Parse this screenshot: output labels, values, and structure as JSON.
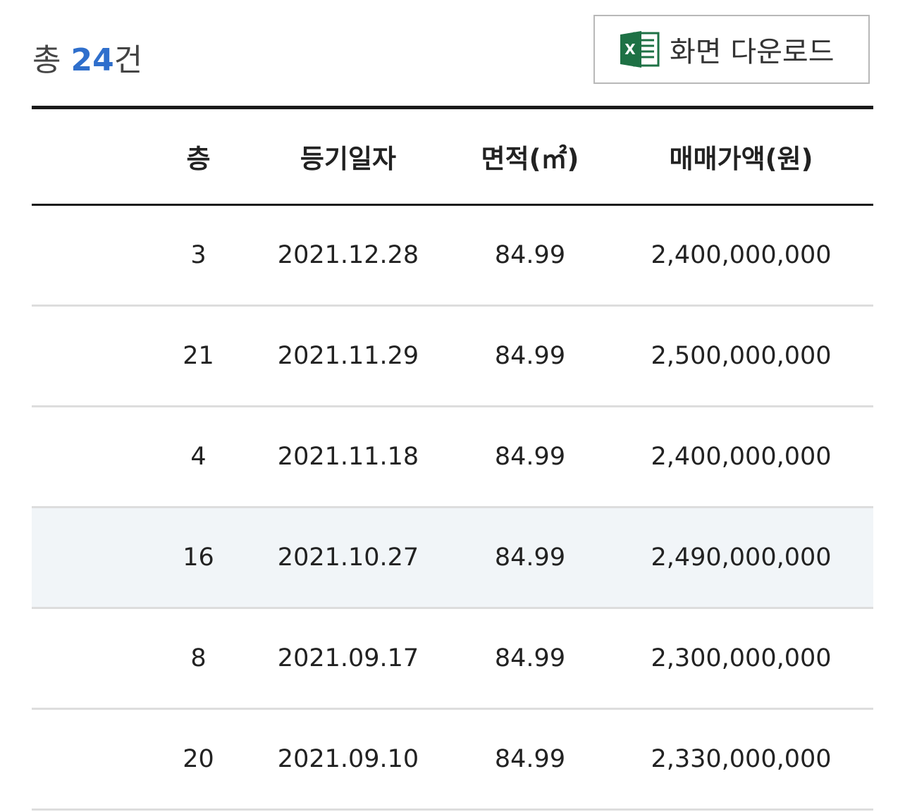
{
  "summary": {
    "prefix": "총 ",
    "count": "24",
    "suffix": "건"
  },
  "download_button": {
    "label": "화면 다운로드",
    "icon": "excel-icon",
    "icon_color": "#1e7145"
  },
  "table": {
    "headers": [
      "층",
      "등기일자",
      "면적(㎡)",
      "매매가액(원)"
    ],
    "rows": [
      {
        "floor": "3",
        "date": "2021.12.28",
        "area": "84.99",
        "price": "2,400,000,000"
      },
      {
        "floor": "21",
        "date": "2021.11.29",
        "area": "84.99",
        "price": "2,500,000,000"
      },
      {
        "floor": "4",
        "date": "2021.11.18",
        "area": "84.99",
        "price": "2,400,000,000"
      },
      {
        "floor": "16",
        "date": "2021.10.27",
        "area": "84.99",
        "price": "2,490,000,000"
      },
      {
        "floor": "8",
        "date": "2021.09.17",
        "area": "84.99",
        "price": "2,300,000,000"
      },
      {
        "floor": "20",
        "date": "2021.09.10",
        "area": "84.99",
        "price": "2,330,000,000"
      }
    ],
    "highlighted_row": 3
  },
  "colors": {
    "accent": "#2f6fcc",
    "highlight_row": "#f1f5f8",
    "rule_dark": "#1a1a1a",
    "rule_light": "#dddddd"
  }
}
